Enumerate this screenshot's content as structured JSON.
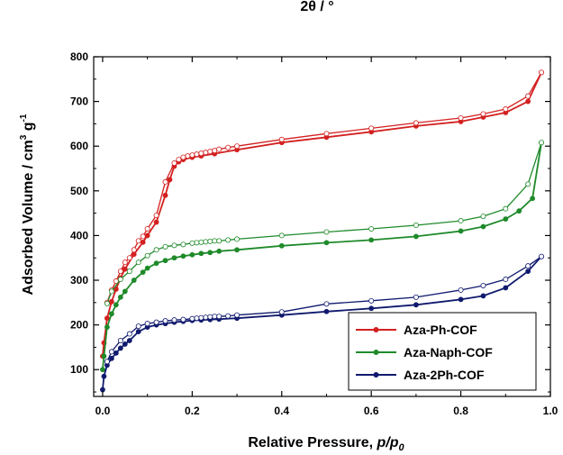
{
  "top_cutoff_label": "2θ / °",
  "chart_data": {
    "type": "scatter",
    "xlabel_parts": [
      "Relative Pressure, ",
      "p/p",
      "0"
    ],
    "ylabel_parts": [
      "Adsorbed Volume / cm",
      "3",
      " g",
      "-1"
    ],
    "xlim": [
      -0.02,
      1.0
    ],
    "ylim": [
      40,
      800
    ],
    "x_ticks": [
      0.0,
      0.2,
      0.4,
      0.6,
      0.8,
      1.0
    ],
    "x_tick_labels": [
      "0.0",
      "0.2",
      "0.4",
      "0.6",
      "0.8",
      "1.0"
    ],
    "y_ticks": [
      100,
      200,
      300,
      400,
      500,
      600,
      700,
      800
    ],
    "y_tick_labels": [
      "100",
      "200",
      "300",
      "400",
      "500",
      "600",
      "700",
      "800"
    ],
    "legend_position": "bottom-right",
    "series": [
      {
        "name": "Aza-Ph-COF",
        "color": "#d42020",
        "adsorption": [
          [
            0.0,
            130
          ],
          [
            0.003,
            160
          ],
          [
            0.01,
            215
          ],
          [
            0.02,
            252
          ],
          [
            0.03,
            280
          ],
          [
            0.04,
            305
          ],
          [
            0.05,
            325
          ],
          [
            0.07,
            358
          ],
          [
            0.09,
            385
          ],
          [
            0.1,
            400
          ],
          [
            0.12,
            430
          ],
          [
            0.14,
            490
          ],
          [
            0.15,
            525
          ],
          [
            0.16,
            555
          ],
          [
            0.17,
            565
          ],
          [
            0.18,
            570
          ],
          [
            0.2,
            575
          ],
          [
            0.22,
            578
          ],
          [
            0.25,
            583
          ],
          [
            0.3,
            592
          ],
          [
            0.4,
            608
          ],
          [
            0.5,
            620
          ],
          [
            0.6,
            632
          ],
          [
            0.7,
            645
          ],
          [
            0.8,
            655
          ],
          [
            0.85,
            665
          ],
          [
            0.9,
            675
          ],
          [
            0.95,
            700
          ],
          [
            0.98,
            765
          ]
        ],
        "desorption": [
          [
            0.98,
            765
          ],
          [
            0.95,
            712
          ],
          [
            0.9,
            683
          ],
          [
            0.85,
            672
          ],
          [
            0.8,
            663
          ],
          [
            0.7,
            652
          ],
          [
            0.6,
            640
          ],
          [
            0.5,
            628
          ],
          [
            0.4,
            615
          ],
          [
            0.3,
            600
          ],
          [
            0.28,
            597
          ],
          [
            0.26,
            593
          ],
          [
            0.25,
            590
          ],
          [
            0.24,
            588
          ],
          [
            0.23,
            586
          ],
          [
            0.22,
            584
          ],
          [
            0.21,
            582
          ],
          [
            0.2,
            580
          ],
          [
            0.19,
            578
          ],
          [
            0.18,
            575
          ],
          [
            0.17,
            570
          ],
          [
            0.16,
            562
          ],
          [
            0.14,
            520
          ],
          [
            0.12,
            445
          ],
          [
            0.1,
            415
          ],
          [
            0.09,
            398
          ],
          [
            0.08,
            388
          ],
          [
            0.07,
            368
          ],
          [
            0.06,
            350
          ],
          [
            0.05,
            340
          ],
          [
            0.04,
            320
          ],
          [
            0.03,
            298
          ],
          [
            0.02,
            278
          ],
          [
            0.01,
            250
          ]
        ]
      },
      {
        "name": "Aza-Naph-COF",
        "color": "#1f8a2a",
        "adsorption": [
          [
            0.0,
            100
          ],
          [
            0.003,
            130
          ],
          [
            0.01,
            195
          ],
          [
            0.02,
            225
          ],
          [
            0.03,
            245
          ],
          [
            0.04,
            262
          ],
          [
            0.05,
            275
          ],
          [
            0.07,
            300
          ],
          [
            0.09,
            318
          ],
          [
            0.1,
            327
          ],
          [
            0.12,
            338
          ],
          [
            0.14,
            344
          ],
          [
            0.16,
            350
          ],
          [
            0.18,
            354
          ],
          [
            0.2,
            357
          ],
          [
            0.22,
            360
          ],
          [
            0.24,
            362
          ],
          [
            0.26,
            365
          ],
          [
            0.3,
            368
          ],
          [
            0.4,
            377
          ],
          [
            0.5,
            384
          ],
          [
            0.6,
            390
          ],
          [
            0.7,
            398
          ],
          [
            0.8,
            410
          ],
          [
            0.85,
            420
          ],
          [
            0.9,
            437
          ],
          [
            0.93,
            455
          ],
          [
            0.96,
            483
          ],
          [
            0.98,
            608
          ]
        ],
        "desorption": [
          [
            0.98,
            608
          ],
          [
            0.95,
            515
          ],
          [
            0.9,
            460
          ],
          [
            0.85,
            443
          ],
          [
            0.8,
            433
          ],
          [
            0.7,
            423
          ],
          [
            0.6,
            415
          ],
          [
            0.5,
            408
          ],
          [
            0.4,
            400
          ],
          [
            0.3,
            392
          ],
          [
            0.28,
            390
          ],
          [
            0.26,
            388
          ],
          [
            0.25,
            388
          ],
          [
            0.24,
            387
          ],
          [
            0.23,
            386
          ],
          [
            0.22,
            385
          ],
          [
            0.21,
            384
          ],
          [
            0.2,
            383
          ],
          [
            0.18,
            380
          ],
          [
            0.16,
            378
          ],
          [
            0.14,
            375
          ],
          [
            0.12,
            368
          ],
          [
            0.1,
            355
          ],
          [
            0.08,
            340
          ],
          [
            0.06,
            320
          ],
          [
            0.04,
            302
          ],
          [
            0.02,
            275
          ],
          [
            0.01,
            248
          ]
        ]
      },
      {
        "name": "Aza-2Ph-COF",
        "color": "#101a6e",
        "adsorption": [
          [
            0.0,
            55
          ],
          [
            0.003,
            85
          ],
          [
            0.01,
            110
          ],
          [
            0.02,
            125
          ],
          [
            0.03,
            137
          ],
          [
            0.04,
            148
          ],
          [
            0.05,
            157
          ],
          [
            0.06,
            165
          ],
          [
            0.08,
            185
          ],
          [
            0.1,
            195
          ],
          [
            0.12,
            200
          ],
          [
            0.14,
            203
          ],
          [
            0.16,
            206
          ],
          [
            0.18,
            208
          ],
          [
            0.2,
            210
          ],
          [
            0.22,
            211
          ],
          [
            0.24,
            212
          ],
          [
            0.26,
            213
          ],
          [
            0.3,
            215
          ],
          [
            0.4,
            222
          ],
          [
            0.5,
            230
          ],
          [
            0.6,
            237
          ],
          [
            0.7,
            245
          ],
          [
            0.8,
            257
          ],
          [
            0.85,
            265
          ],
          [
            0.9,
            283
          ],
          [
            0.95,
            320
          ],
          [
            0.98,
            353
          ]
        ],
        "desorption": [
          [
            0.98,
            353
          ],
          [
            0.95,
            332
          ],
          [
            0.9,
            302
          ],
          [
            0.85,
            288
          ],
          [
            0.8,
            278
          ],
          [
            0.7,
            262
          ],
          [
            0.6,
            254
          ],
          [
            0.5,
            247
          ],
          [
            0.4,
            229
          ],
          [
            0.3,
            222
          ],
          [
            0.28,
            220
          ],
          [
            0.26,
            219
          ],
          [
            0.25,
            219
          ],
          [
            0.24,
            218
          ],
          [
            0.23,
            217
          ],
          [
            0.22,
            216
          ],
          [
            0.21,
            215
          ],
          [
            0.2,
            214
          ],
          [
            0.18,
            212
          ],
          [
            0.16,
            211
          ],
          [
            0.14,
            209
          ],
          [
            0.12,
            206
          ],
          [
            0.1,
            203
          ],
          [
            0.08,
            197
          ],
          [
            0.06,
            180
          ],
          [
            0.04,
            165
          ],
          [
            0.02,
            140
          ],
          [
            0.01,
            118
          ]
        ]
      }
    ]
  }
}
